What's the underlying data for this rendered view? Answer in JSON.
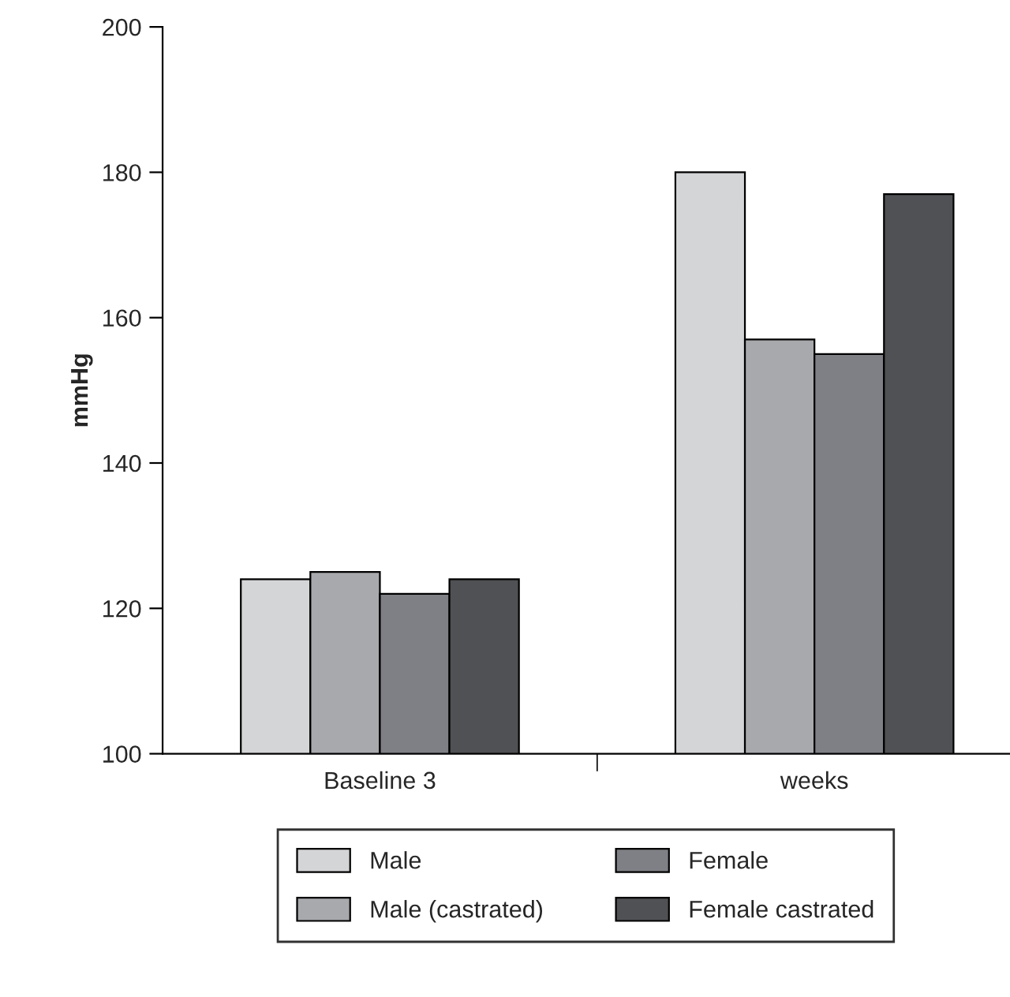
{
  "chart_data": {
    "type": "bar",
    "ylabel": "mmHg",
    "categories": [
      "Baseline 3",
      "weeks"
    ],
    "series": [
      {
        "name": "Male",
        "color": "#d4d5d7",
        "values": [
          124,
          180
        ]
      },
      {
        "name": "Male (castrated)",
        "color": "#a8a9ad",
        "values": [
          125,
          157
        ]
      },
      {
        "name": "Female",
        "color": "#7f8085",
        "values": [
          122,
          155
        ]
      },
      {
        "name": "Female castrated",
        "color": "#505154",
        "values": [
          124,
          177
        ]
      }
    ],
    "ylim": [
      100,
      200
    ],
    "yticks": [
      100,
      120,
      140,
      160,
      180,
      200
    ],
    "grid": false,
    "legend": "bottom"
  }
}
